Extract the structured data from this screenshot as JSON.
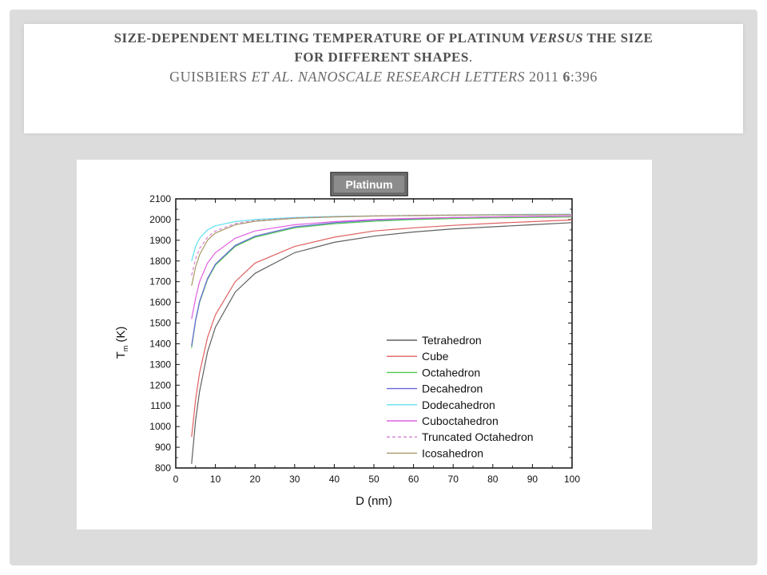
{
  "title": {
    "line1_pre": "SIZE-DEPENDENT MELTING TEMPERATURE OF PLATINUM ",
    "line1_ital": "VERSUS",
    "line1_post": " THE SIZE",
    "line2": "FOR DIFFERENT SHAPES",
    "line2_end": ".",
    "line3_a": "GUISBIERS ",
    "line3_b": "ET AL. NANOSCALE RESEARCH LETTERS",
    "line3_c": " 2011 ",
    "line3_d": "6",
    "line3_e": ":396"
  },
  "chart_data": {
    "type": "line",
    "title": "Platinum",
    "xlabel": "D (nm)",
    "ylabel_main": "T",
    "ylabel_sub": "m",
    "ylabel_unit": "(K)",
    "xlim": [
      0,
      100
    ],
    "ylim": [
      800,
      2100
    ],
    "x_ticks": [
      0,
      10,
      20,
      30,
      40,
      50,
      60,
      70,
      80,
      90,
      100
    ],
    "y_ticks": [
      800,
      900,
      1000,
      1100,
      1200,
      1300,
      1400,
      1500,
      1600,
      1700,
      1800,
      1900,
      2000,
      2100
    ],
    "legend_position": "lower-right",
    "grid": false,
    "series": [
      {
        "name": "Tetrahedron",
        "color": "#606060",
        "dashed": false,
        "x": [
          4,
          5,
          6,
          8,
          10,
          15,
          20,
          30,
          40,
          50,
          60,
          70,
          80,
          90,
          100
        ],
        "y": [
          820,
          1030,
          1170,
          1360,
          1480,
          1650,
          1740,
          1840,
          1890,
          1920,
          1940,
          1955,
          1965,
          1975,
          1985
        ]
      },
      {
        "name": "Cube",
        "color": "#e06060",
        "dashed": false,
        "x": [
          4,
          5,
          6,
          8,
          10,
          15,
          20,
          30,
          40,
          50,
          60,
          70,
          80,
          90,
          100
        ],
        "y": [
          950,
          1130,
          1260,
          1430,
          1540,
          1700,
          1790,
          1870,
          1915,
          1945,
          1960,
          1972,
          1982,
          1990,
          1998
        ]
      },
      {
        "name": "Octahedron",
        "color": "#50c850",
        "dashed": false,
        "x": [
          4,
          5,
          6,
          8,
          10,
          15,
          20,
          30,
          40,
          50,
          60,
          70,
          80,
          90,
          100
        ],
        "y": [
          1380,
          1510,
          1600,
          1710,
          1780,
          1870,
          1915,
          1960,
          1980,
          1992,
          2000,
          2005,
          2008,
          2010,
          2012
        ]
      },
      {
        "name": "Decahedron",
        "color": "#6868d8",
        "dashed": false,
        "x": [
          4,
          5,
          6,
          8,
          10,
          15,
          20,
          30,
          40,
          50,
          60,
          70,
          80,
          90,
          100
        ],
        "y": [
          1390,
          1515,
          1605,
          1715,
          1785,
          1875,
          1920,
          1965,
          1985,
          1997,
          2004,
          2010,
          2013,
          2016,
          2018
        ]
      },
      {
        "name": "Dodecahedron",
        "color": "#60e0f0",
        "dashed": false,
        "x": [
          4,
          5,
          6,
          8,
          10,
          15,
          20,
          30,
          40,
          50,
          60,
          70,
          80,
          90,
          100
        ],
        "y": [
          1800,
          1870,
          1910,
          1950,
          1970,
          1990,
          2000,
          2010,
          2015,
          2018,
          2020,
          2022,
          2024,
          2025,
          2026
        ]
      },
      {
        "name": "Cuboctahedron",
        "color": "#e060e0",
        "dashed": false,
        "x": [
          4,
          5,
          6,
          8,
          10,
          15,
          20,
          30,
          40,
          50,
          60,
          70,
          80,
          90,
          100
        ],
        "y": [
          1520,
          1620,
          1700,
          1790,
          1840,
          1910,
          1945,
          1975,
          1990,
          2000,
          2006,
          2010,
          2013,
          2015,
          2017
        ]
      },
      {
        "name": "Truncated Octahedron",
        "color": "#d880d0",
        "dashed": true,
        "x": [
          4,
          5,
          6,
          8,
          10,
          15,
          20,
          30,
          40,
          50,
          60,
          70,
          80,
          90,
          100
        ],
        "y": [
          1730,
          1810,
          1860,
          1915,
          1945,
          1980,
          1995,
          2008,
          2014,
          2018,
          2020,
          2022,
          2023,
          2024,
          2025
        ]
      },
      {
        "name": "Icosahedron",
        "color": "#a89868",
        "dashed": false,
        "x": [
          4,
          5,
          6,
          8,
          10,
          15,
          20,
          30,
          40,
          50,
          60,
          70,
          80,
          90,
          100
        ],
        "y": [
          1680,
          1770,
          1830,
          1900,
          1935,
          1975,
          1992,
          2006,
          2013,
          2017,
          2019,
          2021,
          2022,
          2023,
          2024
        ]
      }
    ]
  }
}
